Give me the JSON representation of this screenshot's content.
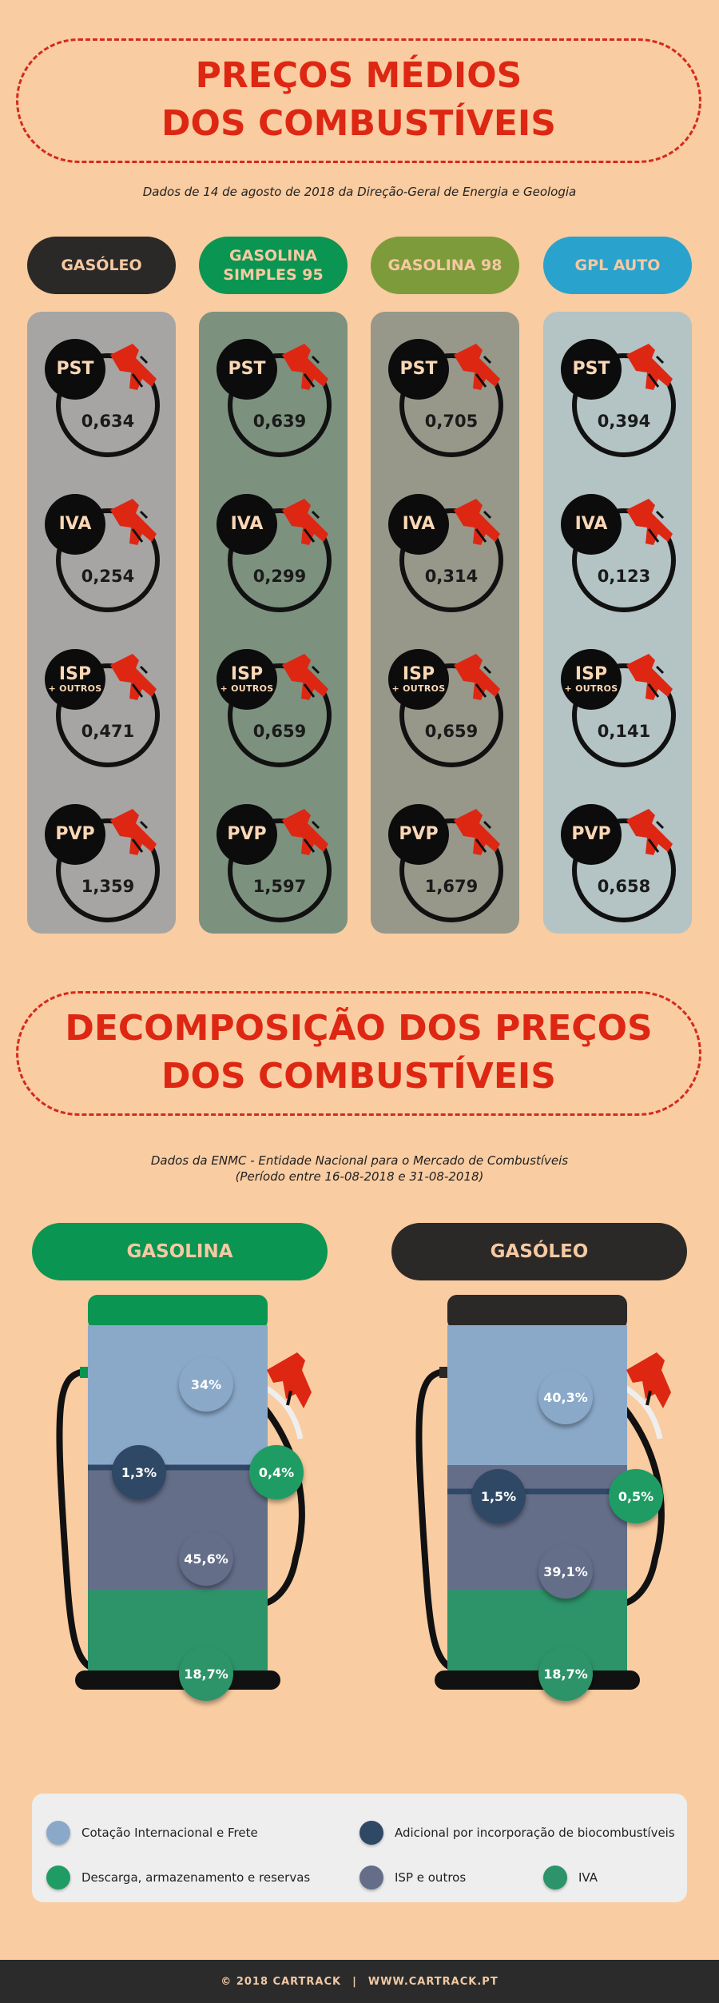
{
  "header": {
    "title_line1": "PREÇOS MÉDIOS",
    "title_line2": "DOS COMBUSTÍVEIS",
    "subtitle": "Dados de 14 de agosto de 2018 da Direção-Geral de Energia e Geologia"
  },
  "fuels": [
    {
      "name": "GASÓLEO",
      "pill_bg": "#2b2928",
      "pill_color": "#f6c9a2",
      "col_bg": "#a6a5a4",
      "items": [
        {
          "label": "PST",
          "sub": "",
          "value": "0,634"
        },
        {
          "label": "IVA",
          "sub": "",
          "value": "0,254"
        },
        {
          "label": "ISP",
          "sub": "+ OUTROS",
          "value": "0,471"
        },
        {
          "label": "PVP",
          "sub": "",
          "value": "1,359"
        }
      ]
    },
    {
      "name": "GASOLINA SIMPLES 95",
      "pill_bg": "#0b9552",
      "pill_color": "#f6c9a2",
      "col_bg": "#7d917f",
      "items": [
        {
          "label": "PST",
          "sub": "",
          "value": "0,639"
        },
        {
          "label": "IVA",
          "sub": "",
          "value": "0,299"
        },
        {
          "label": "ISP",
          "sub": "+ OUTROS",
          "value": "0,659"
        },
        {
          "label": "PVP",
          "sub": "",
          "value": "1,597"
        }
      ]
    },
    {
      "name": "GASOLINA 98",
      "pill_bg": "#7e9b3b",
      "pill_color": "#f6c9a2",
      "col_bg": "#97988a",
      "items": [
        {
          "label": "PST",
          "sub": "",
          "value": "0,705"
        },
        {
          "label": "IVA",
          "sub": "",
          "value": "0,314"
        },
        {
          "label": "ISP",
          "sub": "+ OUTROS",
          "value": "0,659"
        },
        {
          "label": "PVP",
          "sub": "",
          "value": "1,679"
        }
      ]
    },
    {
      "name": "GPL AUTO",
      "pill_bg": "#29a3cd",
      "pill_color": "#f6c9a2",
      "col_bg": "#b4c3c4",
      "items": [
        {
          "label": "PST",
          "sub": "",
          "value": "0,394"
        },
        {
          "label": "IVA",
          "sub": "",
          "value": "0,123"
        },
        {
          "label": "ISP",
          "sub": "+ OUTROS",
          "value": "0,141"
        },
        {
          "label": "PVP",
          "sub": "",
          "value": "0,658"
        }
      ]
    }
  ],
  "section2": {
    "title_line1": "DECOMPOSIÇÃO DOS PREÇOS",
    "title_line2": "DOS COMBUSTÍVEIS",
    "subtitle_line1": "Dados da ENMC - Entidade Nacional para o Mercado de Combustíveis",
    "subtitle_line2": "(Período entre 16-08-2018 e 31-08-2018)"
  },
  "breakdown": [
    {
      "name": "GASOLINA",
      "pill_bg": "#0b9552",
      "pill_color": "#f6c9a2",
      "top_color": "#0b9552",
      "cotacao": "34%",
      "adicional": "1,3%",
      "descarga": "0,4%",
      "isp": "45,6%",
      "iva": "18,7%"
    },
    {
      "name": "GASÓLEO",
      "pill_bg": "#2b2928",
      "pill_color": "#f6c9a2",
      "top_color": "#2b2928",
      "cotacao": "40,3%",
      "adicional": "1,5%",
      "descarga": "0,5%",
      "isp": "39,1%",
      "iva": "18,7%"
    }
  ],
  "legend": {
    "cotacao": "Cotação Internacional e Frete",
    "adicional": "Adicional por incorporação de biocombustíveis",
    "descarga": "Descarga, armazenamento e reservas",
    "isp": "ISP e outros",
    "iva": "IVA"
  },
  "colors": {
    "cotacao": "#8aa9c9",
    "adicional": "#2f4866",
    "descarga": "#1f9c63",
    "isp": "#646e89",
    "iva": "#2d9369",
    "title_red": "#dd2713",
    "nozzle_red": "#dd2713"
  },
  "footer": {
    "copyright": "© 2018 CARTRACK",
    "separator": "|",
    "website": "WWW.CARTRACK.PT"
  }
}
